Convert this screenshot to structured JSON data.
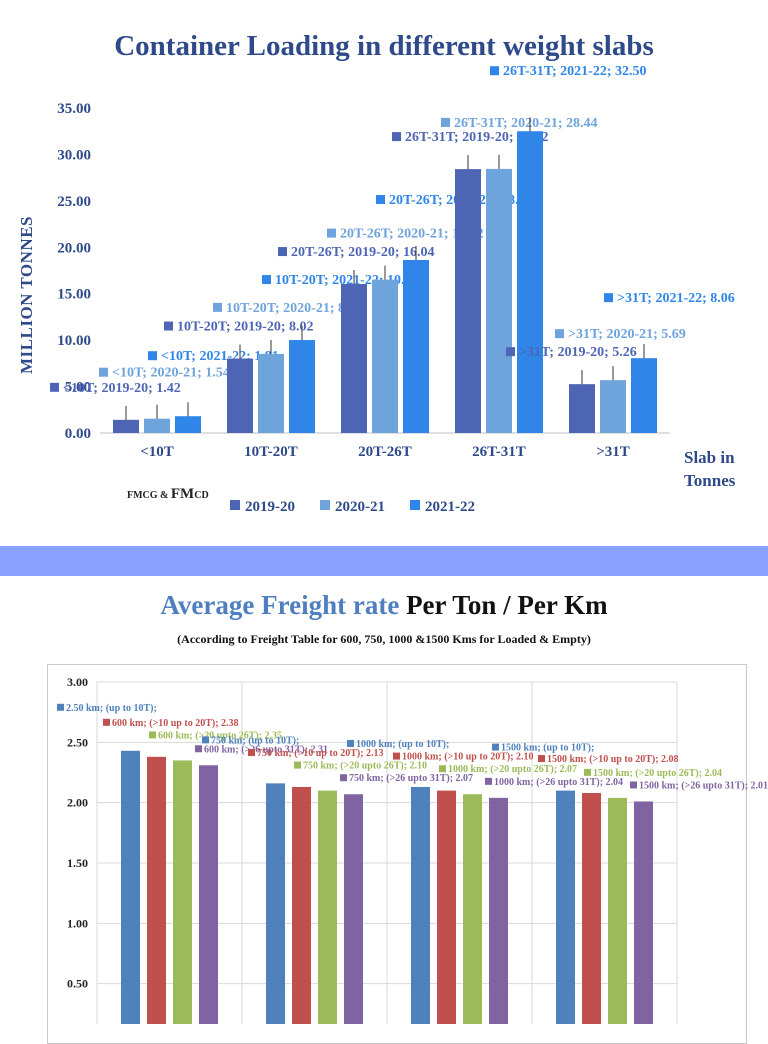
{
  "chart_data": [
    {
      "type": "bar",
      "title": "Container Loading in different weight slabs",
      "ylabel": "MILLION TONNES",
      "xlabel": "Slab in\nTonnes",
      "ylim": [
        0,
        35
      ],
      "yticks": [
        "0.00",
        "5.00",
        "10.00",
        "15.00",
        "20.00",
        "25.00",
        "30.00",
        "35.00"
      ],
      "categories": [
        "<10T",
        "10T-20T",
        "20T-26T",
        "26T-31T",
        ">31T"
      ],
      "series": [
        {
          "name": "2019-20",
          "color": "#4e65b5",
          "values": [
            1.42,
            8.02,
            16.04,
            28.42,
            5.26
          ]
        },
        {
          "name": "2020-21",
          "color": "#6fa3dc",
          "values": [
            1.54,
            8.52,
            16.52,
            28.44,
            5.69
          ]
        },
        {
          "name": "2021-22",
          "color": "#2f86e8",
          "values": [
            1.81,
            10.01,
            18.63,
            32.5,
            8.06
          ]
        }
      ],
      "data_labels": [
        [
          "<10T; 2019-20; 1.42",
          "<10T; 2020-21; 1.54",
          "<10T; 2021-22; 1.81"
        ],
        [
          "10T-20T; 2019-20; 8.02",
          "10T-20T; 2020-21; 8.52",
          "10T-20T; 2021-22; 10.01"
        ],
        [
          "20T-26T; 2019-20; 16.04",
          "20T-26T; 2020-21; 16.52",
          "20T-26T; 2021-22; 18.63"
        ],
        [
          "26T-31T; 2019-20; 28.42",
          "26T-31T; 2020-21; 28.44",
          "26T-31T; 2021-22; 32.50"
        ],
        [
          ">31T; 2019-20; 5.26",
          ">31T; 2020-21; 5.69",
          ">31T; 2021-22; 8.06"
        ]
      ],
      "legend_position": "bottom",
      "footnote_small_1": "FMCG & ",
      "footnote_big": "FM",
      "footnote_small_2": "CD"
    },
    {
      "type": "bar",
      "title_part1": "Average Freight rate",
      "title_part2": " Per Ton / Per Km",
      "subtitle": "(According to Freight Table for 600, 750, 1000 &1500 Kms for Loaded & Empty)",
      "ylim": [
        0,
        3
      ],
      "yticks": [
        "0.50",
        "1.00",
        "1.50",
        "2.00",
        "2.50",
        "3.00"
      ],
      "categories": [
        "600 km",
        "750 km",
        "1000 km",
        "1500 km"
      ],
      "series": [
        {
          "color": "#4f81bd",
          "values": [
            2.43,
            2.16,
            2.13,
            2.1
          ]
        },
        {
          "color": "#c0504d",
          "values": [
            2.38,
            2.13,
            2.1,
            2.08
          ]
        },
        {
          "color": "#9bbb59",
          "values": [
            2.35,
            2.1,
            2.07,
            2.04
          ]
        },
        {
          "color": "#8064a2",
          "values": [
            2.31,
            2.07,
            2.04,
            2.01
          ]
        }
      ],
      "data_labels": [
        [
          "2.50 km; (up to 10T);",
          "600 km; (>10 up to 20T); 2.38",
          "600 km; (>20 upto 26T); 2.35",
          "600 km; (>26 upto 31T); 2.31"
        ],
        [
          "750 km; (up to 10T);",
          "750 km; (>10 up to 20T); 2.13",
          "750 km; (>20 upto 26T); 2.10",
          "750 km; (>26 upto 31T); 2.07"
        ],
        [
          "1000 km; (up to 10T);",
          "1000 km; (>10 up to 20T); 2.10",
          "1000 km; (>20 upto 26T); 2.07",
          "1000 km; (>26 upto 31T); 2.04"
        ],
        [
          "1500 km; (up to 10T);",
          "1500 km; (>10 up to 20T); 2.08",
          "1500 km; (>20 upto 26T); 2.04",
          "1500 km; (>26 upto 31T); 2.01"
        ]
      ]
    }
  ]
}
